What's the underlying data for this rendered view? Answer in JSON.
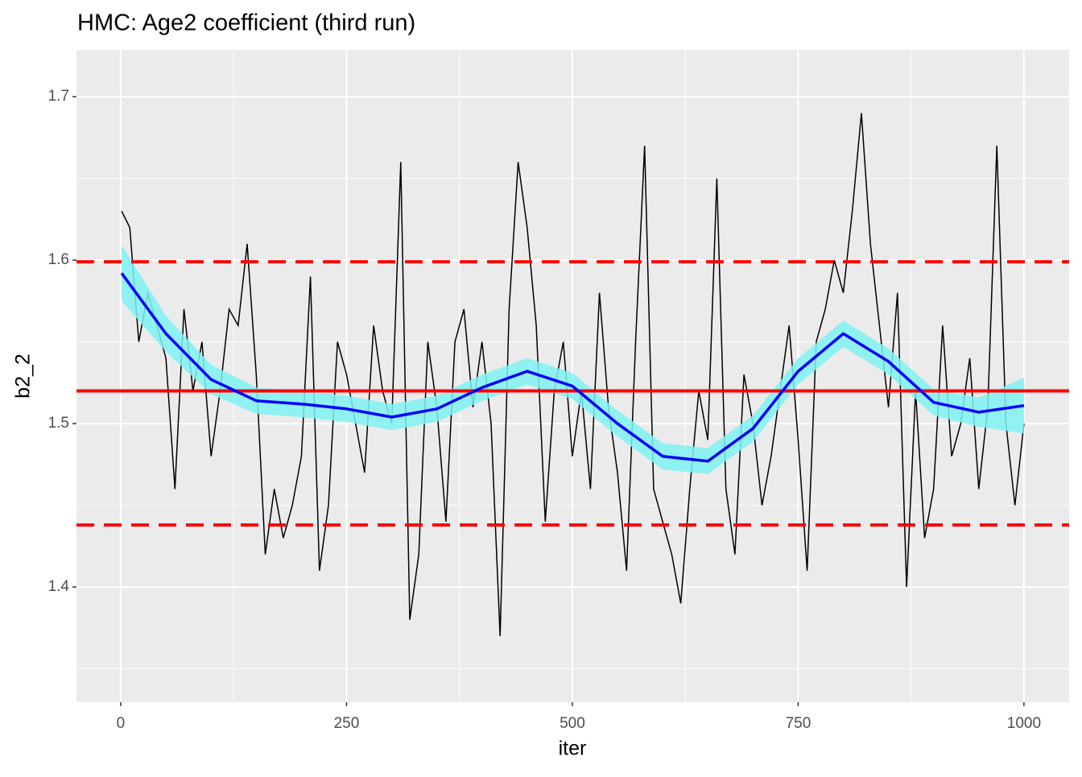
{
  "chart_data": {
    "type": "line",
    "title": "HMC: Age2 coefficient (third run)",
    "xlabel": "iter",
    "ylabel": "b2_2",
    "xlim": [
      -49,
      1050
    ],
    "ylim": [
      1.3296,
      1.7286
    ],
    "xticks": [
      0,
      250,
      500,
      750,
      1000
    ],
    "yticks": [
      1.4,
      1.5,
      1.6,
      1.7
    ],
    "grid": true,
    "series": [
      {
        "color": "#000000",
        "x": [
          1,
          10,
          20,
          30,
          40,
          50,
          60,
          70,
          80,
          90,
          100,
          110,
          120,
          130,
          140,
          150,
          160,
          170,
          180,
          190,
          200,
          210,
          220,
          230,
          240,
          250,
          260,
          270,
          280,
          290,
          300,
          310,
          320,
          330,
          340,
          350,
          360,
          370,
          380,
          390,
          400,
          410,
          420,
          430,
          440,
          450,
          460,
          470,
          480,
          490,
          500,
          510,
          520,
          530,
          540,
          550,
          560,
          570,
          580,
          590,
          600,
          610,
          620,
          630,
          640,
          650,
          660,
          670,
          680,
          690,
          700,
          710,
          720,
          730,
          740,
          750,
          760,
          770,
          780,
          790,
          800,
          810,
          820,
          830,
          840,
          850,
          860,
          870,
          880,
          890,
          900,
          910,
          920,
          930,
          940,
          950,
          960,
          970,
          980,
          990,
          1000
        ],
        "values": [
          1.63,
          1.62,
          1.55,
          1.58,
          1.56,
          1.54,
          1.46,
          1.57,
          1.52,
          1.55,
          1.48,
          1.52,
          1.57,
          1.56,
          1.61,
          1.53,
          1.42,
          1.46,
          1.43,
          1.45,
          1.48,
          1.59,
          1.41,
          1.45,
          1.55,
          1.53,
          1.5,
          1.47,
          1.56,
          1.52,
          1.5,
          1.66,
          1.38,
          1.42,
          1.55,
          1.51,
          1.44,
          1.55,
          1.57,
          1.51,
          1.55,
          1.5,
          1.37,
          1.57,
          1.66,
          1.62,
          1.56,
          1.44,
          1.52,
          1.55,
          1.48,
          1.52,
          1.46,
          1.58,
          1.51,
          1.47,
          1.41,
          1.55,
          1.67,
          1.46,
          1.44,
          1.42,
          1.39,
          1.46,
          1.52,
          1.49,
          1.65,
          1.46,
          1.42,
          1.53,
          1.5,
          1.45,
          1.48,
          1.52,
          1.56,
          1.49,
          1.41,
          1.55,
          1.57,
          1.6,
          1.58,
          1.63,
          1.69,
          1.61,
          1.56,
          1.51,
          1.58,
          1.4,
          1.52,
          1.43,
          1.46,
          1.56,
          1.48,
          1.5,
          1.54,
          1.46,
          1.51,
          1.67,
          1.5,
          1.45,
          1.5
        ]
      },
      {
        "color": "#0000ff",
        "band_color": "#7ff2f2",
        "x": [
          1,
          50,
          100,
          150,
          200,
          250,
          300,
          350,
          400,
          450,
          500,
          550,
          600,
          650,
          700,
          750,
          800,
          850,
          900,
          950,
          1000
        ],
        "values": [
          1.592,
          1.555,
          1.527,
          1.514,
          1.512,
          1.509,
          1.504,
          1.509,
          1.522,
          1.532,
          1.523,
          1.5,
          1.48,
          1.477,
          1.497,
          1.532,
          1.555,
          1.538,
          1.513,
          1.507,
          1.511
        ],
        "lower": [
          1.575,
          1.544,
          1.518,
          1.506,
          1.504,
          1.501,
          1.496,
          1.501,
          1.514,
          1.524,
          1.515,
          1.492,
          1.472,
          1.469,
          1.489,
          1.524,
          1.547,
          1.53,
          1.505,
          1.498,
          1.494
        ],
        "upper": [
          1.609,
          1.566,
          1.536,
          1.522,
          1.52,
          1.517,
          1.512,
          1.517,
          1.53,
          1.54,
          1.531,
          1.508,
          1.488,
          1.485,
          1.505,
          1.54,
          1.563,
          1.546,
          1.521,
          1.516,
          1.528
        ]
      }
    ],
    "hlines": [
      {
        "value": 1.52,
        "color": "#ff0000",
        "dashed": false
      },
      {
        "value": 1.599,
        "color": "#ff0000",
        "dashed": true
      },
      {
        "value": 1.438,
        "color": "#ff0000",
        "dashed": true
      }
    ]
  }
}
